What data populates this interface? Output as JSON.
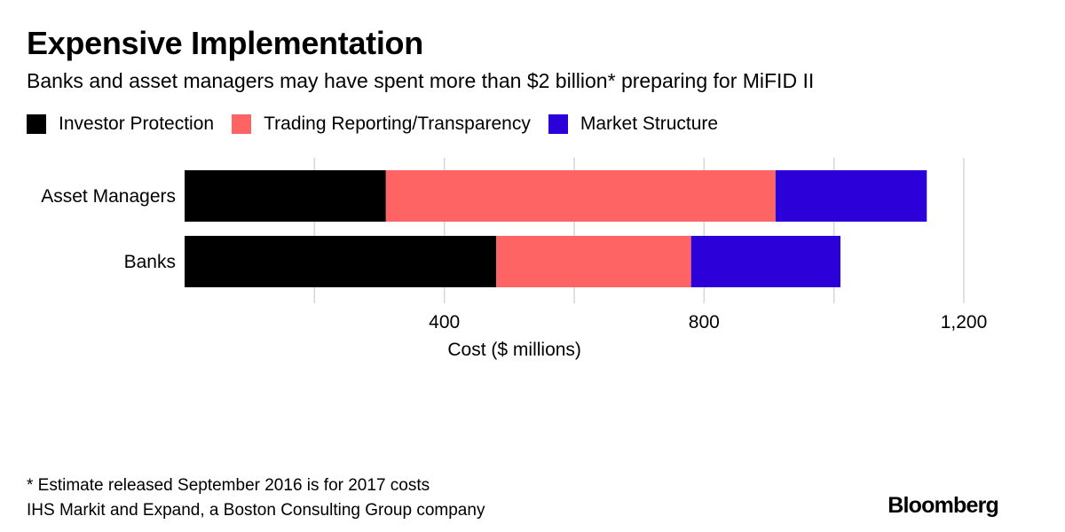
{
  "title": "Expensive Implementation",
  "subtitle": "Banks and asset managers may have spent more than $2 billion* preparing for MiFID II",
  "legend": [
    {
      "label": "Investor Protection",
      "color": "#000000"
    },
    {
      "label": "Trading Reporting/Transparency",
      "color": "#ff6464"
    },
    {
      "label": "Market Structure",
      "color": "#2b00d9"
    }
  ],
  "chart_data": {
    "type": "bar",
    "orientation": "horizontal",
    "stacked": true,
    "categories": [
      "Asset Managers",
      "Banks"
    ],
    "series": [
      {
        "name": "Investor Protection",
        "color": "#000000",
        "values": [
          310,
          480
        ]
      },
      {
        "name": "Trading Reporting/Transparency",
        "color": "#ff6464",
        "values": [
          600,
          300
        ]
      },
      {
        "name": "Market Structure",
        "color": "#2b00d9",
        "values": [
          233,
          230
        ]
      }
    ],
    "xlabel": "Cost ($ millions)",
    "xlim": [
      0,
      1200
    ],
    "gridlines": [
      200,
      400,
      600,
      800,
      1000,
      1200
    ],
    "tick_labels": [
      {
        "value": 400,
        "label": "400"
      },
      {
        "value": 800,
        "label": "800"
      },
      {
        "value": 1200,
        "label": "1,200"
      }
    ],
    "grid": true
  },
  "footnote": {
    "note": "* Estimate released September 2016 is for 2017 costs",
    "source": "IHS Markit and Expand, a Boston Consulting Group company"
  },
  "brand": "Bloomberg"
}
